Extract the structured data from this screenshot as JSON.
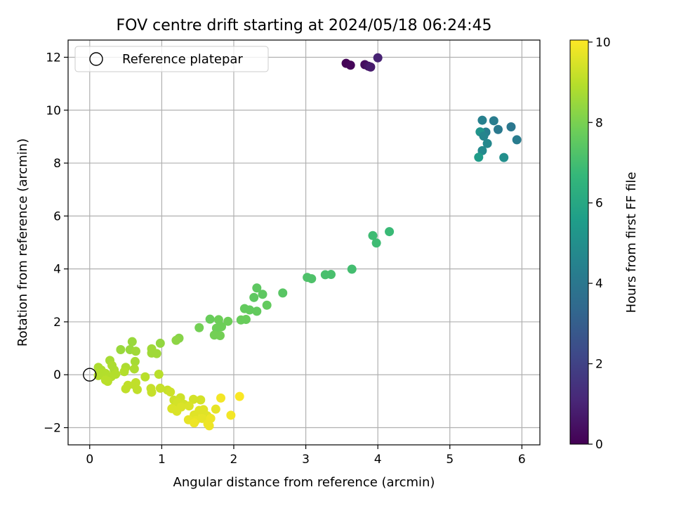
{
  "chart_data": {
    "type": "scatter",
    "title": "FOV centre drift starting at 2024/05/18 06:24:45",
    "xlabel": "Angular distance from reference (arcmin)",
    "ylabel": "Rotation from reference (arcmin)",
    "xlim": [
      -0.3,
      6.25
    ],
    "ylim": [
      -2.65,
      12.65
    ],
    "xticks": [
      0,
      1,
      2,
      3,
      4,
      5,
      6
    ],
    "xtick_labels": [
      "0",
      "1",
      "2",
      "3",
      "4",
      "5",
      "6"
    ],
    "yticks": [
      -2,
      0,
      2,
      4,
      6,
      8,
      10,
      12
    ],
    "ytick_labels": [
      "−2",
      "0",
      "2",
      "4",
      "6",
      "8",
      "10",
      "12"
    ],
    "grid": true,
    "legend": {
      "placement": "upper-left",
      "entries": [
        {
          "label": "Reference platepar",
          "marker": "open-circle"
        }
      ]
    },
    "reference_point": {
      "x": 0,
      "y": 0
    },
    "colorbar": {
      "label": "Hours from first FF file",
      "colormap": "viridis",
      "range": [
        0,
        10.05
      ],
      "ticks": [
        0,
        2,
        4,
        6,
        8,
        10
      ],
      "tick_labels": [
        "0",
        "2",
        "4",
        "6",
        "8",
        "10"
      ]
    },
    "colormap_stops": [
      "#440154",
      "#482878",
      "#3e4989",
      "#31688e",
      "#26828e",
      "#1f9e89",
      "#35b779",
      "#6ece58",
      "#b5de2b",
      "#fde725"
    ],
    "points": [
      {
        "x": 3.56,
        "y": 11.77,
        "c": 0.05
      },
      {
        "x": 3.62,
        "y": 11.7,
        "c": 0.15
      },
      {
        "x": 3.82,
        "y": 11.72,
        "c": 0.35
      },
      {
        "x": 3.87,
        "y": 11.66,
        "c": 0.55
      },
      {
        "x": 3.9,
        "y": 11.63,
        "c": 0.75
      },
      {
        "x": 4.0,
        "y": 11.98,
        "c": 0.95
      },
      {
        "x": 5.45,
        "y": 9.62,
        "c": 4.4
      },
      {
        "x": 5.61,
        "y": 9.6,
        "c": 4.2
      },
      {
        "x": 5.85,
        "y": 9.37,
        "c": 4.0
      },
      {
        "x": 5.67,
        "y": 9.27,
        "c": 4.1
      },
      {
        "x": 5.5,
        "y": 9.17,
        "c": 4.3
      },
      {
        "x": 5.42,
        "y": 9.18,
        "c": 5.2
      },
      {
        "x": 5.47,
        "y": 9.02,
        "c": 4.6
      },
      {
        "x": 5.93,
        "y": 8.88,
        "c": 4.2
      },
      {
        "x": 5.52,
        "y": 8.74,
        "c": 4.7
      },
      {
        "x": 5.45,
        "y": 8.47,
        "c": 4.8
      },
      {
        "x": 5.75,
        "y": 8.21,
        "c": 5.0
      },
      {
        "x": 5.4,
        "y": 8.22,
        "c": 5.5
      },
      {
        "x": 4.16,
        "y": 5.41,
        "c": 6.8
      },
      {
        "x": 3.93,
        "y": 5.26,
        "c": 6.9
      },
      {
        "x": 3.98,
        "y": 4.98,
        "c": 6.9
      },
      {
        "x": 3.64,
        "y": 3.99,
        "c": 7.0
      },
      {
        "x": 3.35,
        "y": 3.79,
        "c": 7.1
      },
      {
        "x": 3.27,
        "y": 3.78,
        "c": 7.1
      },
      {
        "x": 3.02,
        "y": 3.68,
        "c": 7.2
      },
      {
        "x": 3.08,
        "y": 3.63,
        "c": 7.2
      },
      {
        "x": 2.68,
        "y": 3.09,
        "c": 7.4
      },
      {
        "x": 2.32,
        "y": 3.28,
        "c": 7.5
      },
      {
        "x": 2.4,
        "y": 3.04,
        "c": 7.5
      },
      {
        "x": 2.28,
        "y": 2.92,
        "c": 7.5
      },
      {
        "x": 2.46,
        "y": 2.63,
        "c": 7.6
      },
      {
        "x": 2.15,
        "y": 2.5,
        "c": 7.6
      },
      {
        "x": 2.22,
        "y": 2.45,
        "c": 7.6
      },
      {
        "x": 2.32,
        "y": 2.4,
        "c": 7.6
      },
      {
        "x": 2.1,
        "y": 2.07,
        "c": 7.7
      },
      {
        "x": 2.17,
        "y": 2.09,
        "c": 7.7
      },
      {
        "x": 1.67,
        "y": 2.1,
        "c": 7.7
      },
      {
        "x": 1.79,
        "y": 2.08,
        "c": 7.8
      },
      {
        "x": 1.92,
        "y": 2.02,
        "c": 7.8
      },
      {
        "x": 1.76,
        "y": 1.76,
        "c": 7.8
      },
      {
        "x": 1.83,
        "y": 1.82,
        "c": 7.8
      },
      {
        "x": 1.52,
        "y": 1.78,
        "c": 7.9
      },
      {
        "x": 1.73,
        "y": 1.5,
        "c": 7.9
      },
      {
        "x": 1.81,
        "y": 1.48,
        "c": 7.9
      },
      {
        "x": 1.24,
        "y": 1.38,
        "c": 8.2
      },
      {
        "x": 1.2,
        "y": 1.3,
        "c": 8.3
      },
      {
        "x": 0.98,
        "y": 1.19,
        "c": 8.4
      },
      {
        "x": 0.59,
        "y": 1.25,
        "c": 8.5
      },
      {
        "x": 0.43,
        "y": 0.95,
        "c": 8.5
      },
      {
        "x": 0.56,
        "y": 0.95,
        "c": 8.5
      },
      {
        "x": 0.64,
        "y": 0.89,
        "c": 8.6
      },
      {
        "x": 0.86,
        "y": 0.98,
        "c": 8.6
      },
      {
        "x": 0.86,
        "y": 0.82,
        "c": 8.6
      },
      {
        "x": 0.93,
        "y": 0.8,
        "c": 8.6
      },
      {
        "x": 0.63,
        "y": 0.5,
        "c": 8.7
      },
      {
        "x": 0.28,
        "y": 0.54,
        "c": 8.7
      },
      {
        "x": 0.31,
        "y": 0.35,
        "c": 8.8
      },
      {
        "x": 0.5,
        "y": 0.28,
        "c": 8.8
      },
      {
        "x": 0.62,
        "y": 0.22,
        "c": 8.8
      },
      {
        "x": 0.12,
        "y": 0.28,
        "c": 8.8
      },
      {
        "x": 0.16,
        "y": 0.18,
        "c": 8.8
      },
      {
        "x": 0.34,
        "y": 0.18,
        "c": 8.8
      },
      {
        "x": 0.48,
        "y": 0.12,
        "c": 8.9
      },
      {
        "x": 0.14,
        "y": 0.05,
        "c": 8.9
      },
      {
        "x": 0.22,
        "y": 0.05,
        "c": 8.9
      },
      {
        "x": 0.36,
        "y": 0.02,
        "c": 8.9
      },
      {
        "x": 0.12,
        "y": -0.03,
        "c": 8.9
      },
      {
        "x": 0.3,
        "y": -0.07,
        "c": 8.9
      },
      {
        "x": 0.77,
        "y": -0.08,
        "c": 9.0
      },
      {
        "x": 0.96,
        "y": 0.02,
        "c": 9.0
      },
      {
        "x": 0.22,
        "y": -0.2,
        "c": 9.0
      },
      {
        "x": 0.25,
        "y": -0.25,
        "c": 9.0
      },
      {
        "x": 0.64,
        "y": -0.3,
        "c": 9.1
      },
      {
        "x": 0.53,
        "y": -0.4,
        "c": 9.1
      },
      {
        "x": 0.62,
        "y": -0.38,
        "c": 9.1
      },
      {
        "x": 0.5,
        "y": -0.53,
        "c": 9.1
      },
      {
        "x": 0.66,
        "y": -0.56,
        "c": 9.1
      },
      {
        "x": 0.85,
        "y": -0.52,
        "c": 9.2
      },
      {
        "x": 0.98,
        "y": -0.51,
        "c": 9.2
      },
      {
        "x": 0.86,
        "y": -0.66,
        "c": 9.2
      },
      {
        "x": 1.08,
        "y": -0.58,
        "c": 9.2
      },
      {
        "x": 1.12,
        "y": -0.65,
        "c": 9.3
      },
      {
        "x": 1.17,
        "y": -0.96,
        "c": 9.3
      },
      {
        "x": 1.26,
        "y": -0.87,
        "c": 9.3
      },
      {
        "x": 1.22,
        "y": -1.05,
        "c": 9.4
      },
      {
        "x": 1.31,
        "y": -1.12,
        "c": 9.4
      },
      {
        "x": 1.44,
        "y": -0.93,
        "c": 9.4
      },
      {
        "x": 1.54,
        "y": -0.95,
        "c": 9.4
      },
      {
        "x": 1.27,
        "y": -1.22,
        "c": 9.5
      },
      {
        "x": 1.38,
        "y": -1.18,
        "c": 9.5
      },
      {
        "x": 1.14,
        "y": -1.28,
        "c": 9.5
      },
      {
        "x": 1.21,
        "y": -1.38,
        "c": 9.5
      },
      {
        "x": 1.52,
        "y": -1.35,
        "c": 9.6
      },
      {
        "x": 1.58,
        "y": -1.32,
        "c": 9.6
      },
      {
        "x": 1.45,
        "y": -1.52,
        "c": 9.6
      },
      {
        "x": 1.63,
        "y": -1.55,
        "c": 9.6
      },
      {
        "x": 1.75,
        "y": -1.3,
        "c": 9.7
      },
      {
        "x": 1.37,
        "y": -1.7,
        "c": 9.7
      },
      {
        "x": 1.47,
        "y": -1.73,
        "c": 9.7
      },
      {
        "x": 1.56,
        "y": -1.65,
        "c": 9.7
      },
      {
        "x": 1.68,
        "y": -1.65,
        "c": 9.8
      },
      {
        "x": 1.45,
        "y": -1.82,
        "c": 9.8
      },
      {
        "x": 1.64,
        "y": -1.86,
        "c": 9.8
      },
      {
        "x": 1.66,
        "y": -1.93,
        "c": 9.8
      },
      {
        "x": 1.82,
        "y": -0.88,
        "c": 9.9
      },
      {
        "x": 1.96,
        "y": -1.53,
        "c": 9.9
      },
      {
        "x": 2.08,
        "y": -0.82,
        "c": 10.0
      }
    ]
  }
}
